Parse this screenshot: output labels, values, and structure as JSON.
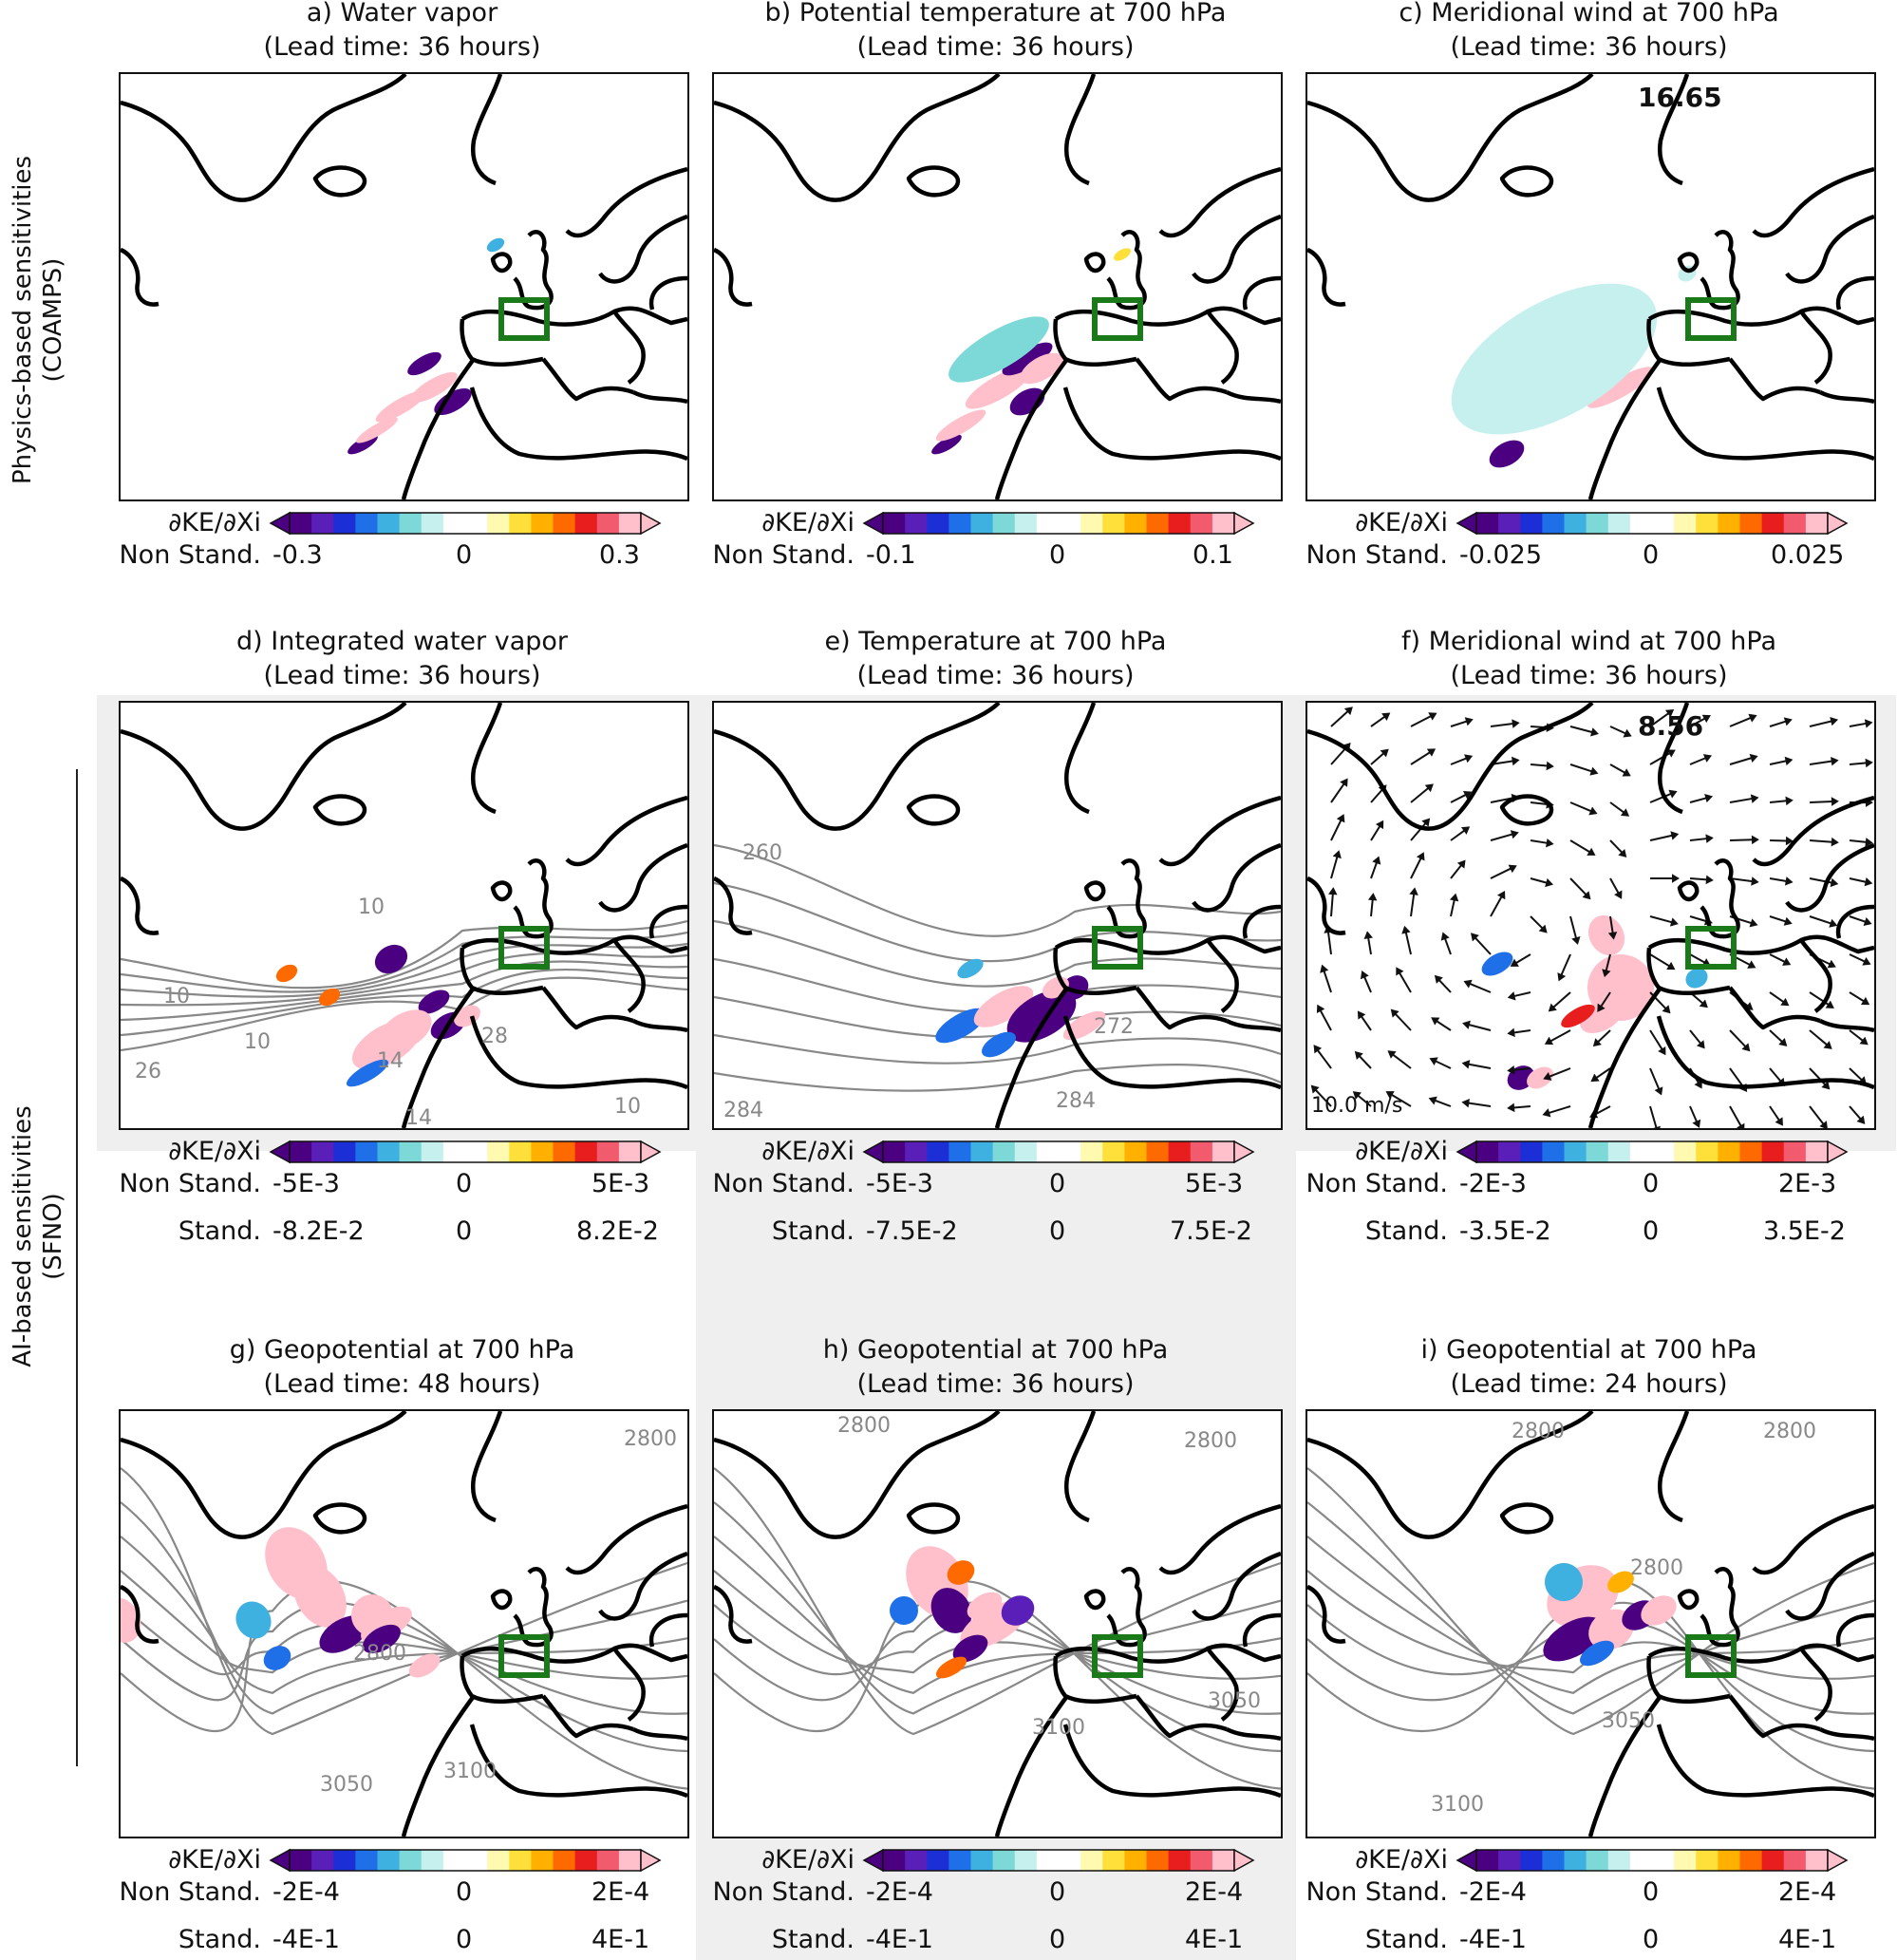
{
  "row_labels": {
    "physics": [
      "Physics-based sensitivities",
      "(COAMPS)"
    ],
    "ai": [
      "AI-based sensitivities",
      "(SFNO)"
    ]
  },
  "colorbar_label": "∂KE/∂Xi",
  "non_stand_label": "Non Stand.",
  "stand_label": "Stand.",
  "panels": [
    {
      "id": "a",
      "title": "a) Water vapor",
      "subtitle": "(Lead time: 36 hours)",
      "nonstand": [
        "-0.3",
        "0",
        "0.3"
      ]
    },
    {
      "id": "b",
      "title": "b) Potential temperature at 700 hPa",
      "subtitle": "(Lead time: 36 hours)",
      "nonstand": [
        "-0.1",
        "0",
        "0.1"
      ]
    },
    {
      "id": "c",
      "title": "c) Meridional wind at 700 hPa",
      "subtitle": "(Lead time: 36 hours)",
      "nonstand": [
        "-0.025",
        "0",
        "0.025"
      ],
      "value": "16.65"
    },
    {
      "id": "d",
      "title": "d) Integrated water vapor",
      "subtitle": "(Lead time: 36 hours)",
      "nonstand": [
        "-5E-3",
        "0",
        "5E-3"
      ],
      "stand": [
        "-8.2E-2",
        "0",
        "8.2E-2"
      ],
      "contours": [
        "10",
        "10",
        "14",
        "10",
        "26",
        "14",
        "10",
        "28"
      ]
    },
    {
      "id": "e",
      "title": "e) Temperature at 700 hPa",
      "subtitle": "(Lead time: 36 hours)",
      "nonstand": [
        "-5E-3",
        "0",
        "5E-3"
      ],
      "stand": [
        "-7.5E-2",
        "0",
        "7.5E-2"
      ],
      "contours": [
        "260",
        "284",
        "284",
        "272"
      ]
    },
    {
      "id": "f",
      "title": "f) Meridional wind at 700 hPa",
      "subtitle": "(Lead time: 36 hours)",
      "nonstand": [
        "-2E-3",
        "0",
        "2E-3"
      ],
      "stand": [
        "-3.5E-2",
        "0",
        "3.5E-2"
      ],
      "value": "8.56",
      "vector_scale": "10.0 m/s"
    },
    {
      "id": "g",
      "title": "g) Geopotential at 700 hPa",
      "subtitle": "(Lead time: 48 hours)",
      "nonstand": [
        "-2E-4",
        "0",
        "2E-4"
      ],
      "stand": [
        "-4E-1",
        "0",
        "4E-1"
      ],
      "contours": [
        "2800",
        "2800",
        "3050",
        "3100"
      ]
    },
    {
      "id": "h",
      "title": "h) Geopotential at 700 hPa",
      "subtitle": "(Lead time: 36  hours)",
      "nonstand": [
        "-2E-4",
        "0",
        "2E-4"
      ],
      "stand": [
        "-4E-1",
        "0",
        "4E-1"
      ],
      "contours": [
        "2800",
        "2800",
        "3100",
        "3050"
      ]
    },
    {
      "id": "i",
      "title": "i) Geopotential at 700 hPa",
      "subtitle": "(Lead time: 24 hours)",
      "nonstand": [
        "-2E-4",
        "0",
        "2E-4"
      ],
      "stand": [
        "-4E-1",
        "0",
        "4E-1"
      ],
      "contours": [
        "2800",
        "2800",
        "2800",
        "3050",
        "3100"
      ]
    }
  ],
  "colormap": [
    "#4b0082",
    "#5a1fb8",
    "#1c2fd6",
    "#1f6fe8",
    "#3fb1e0",
    "#7dd9d8",
    "#c6f0ee",
    "#ffffff",
    "#ffffff",
    "#fffab0",
    "#ffe03a",
    "#ffb000",
    "#ff6a00",
    "#e81e1e",
    "#f25a6e",
    "#ffc0cc"
  ],
  "accent_box_color": "#1a7a1a"
}
